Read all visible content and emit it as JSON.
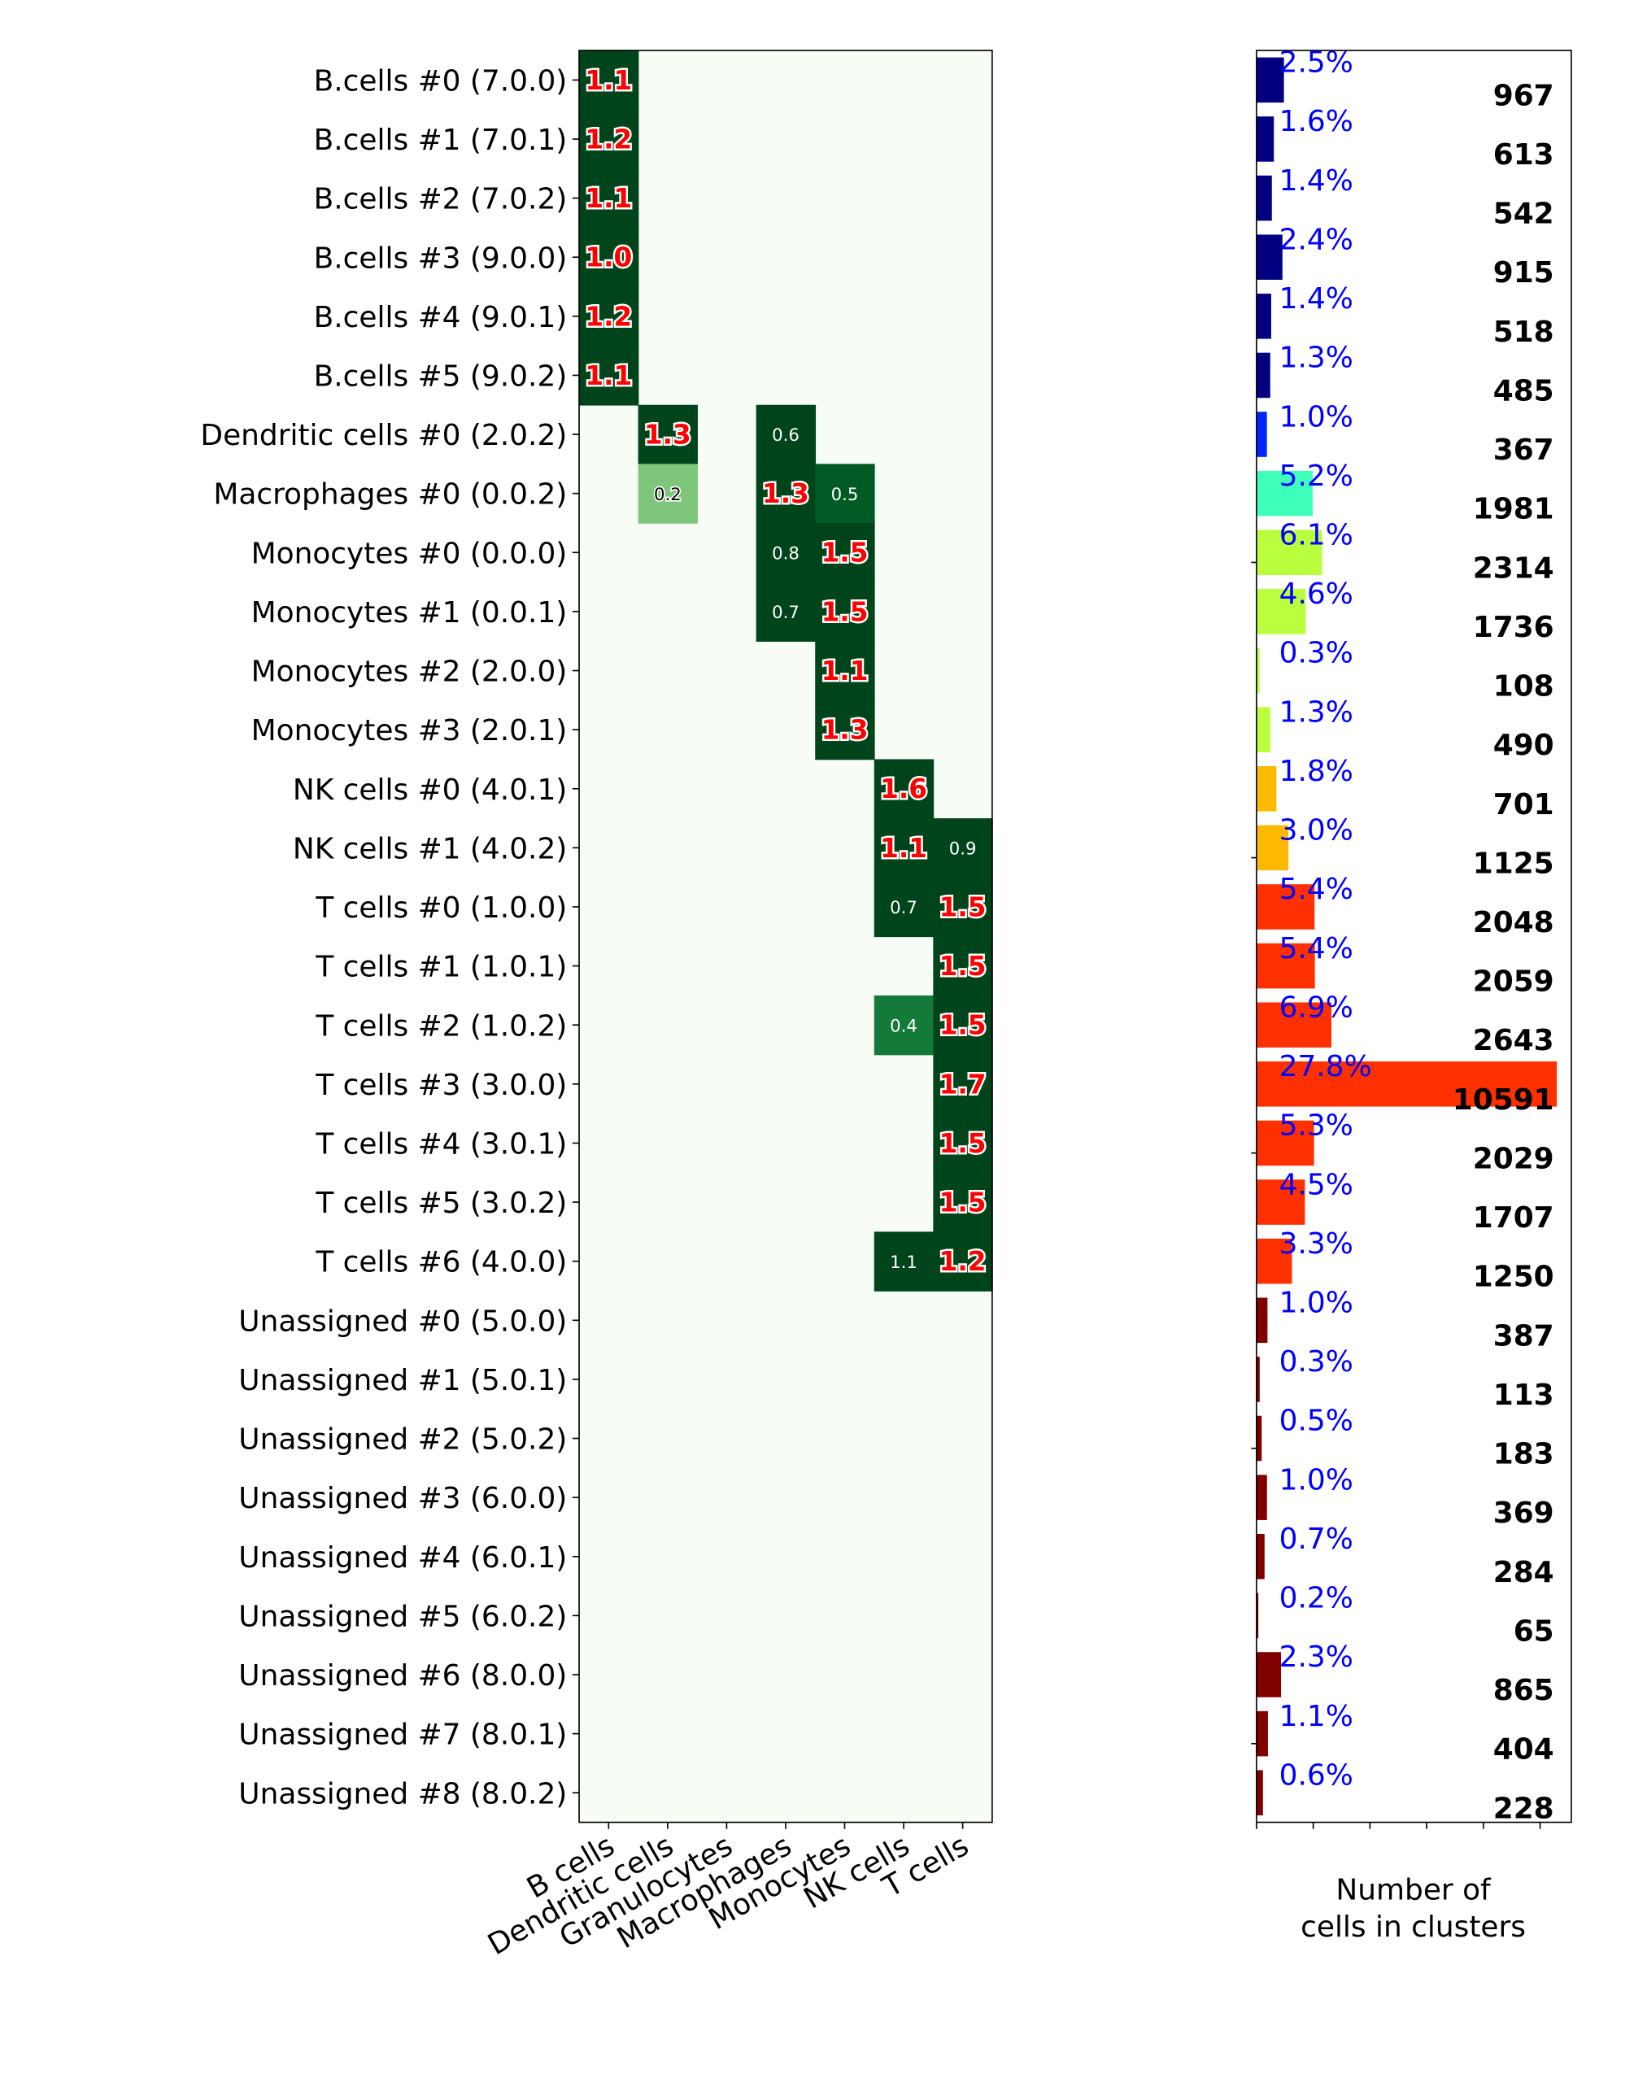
{
  "chart_data": [
    {
      "type": "heatmap",
      "columns": [
        "B cells",
        "Dendritic cells",
        "Granulocytes",
        "Macrophages",
        "Monocytes",
        "NK cells",
        "T cells"
      ],
      "rows": [
        "B.cells #0 (7.0.0)",
        "B.cells #1 (7.0.1)",
        "B.cells #2 (7.0.2)",
        "B.cells #3 (9.0.0)",
        "B.cells #4 (9.0.1)",
        "B.cells #5 (9.0.2)",
        "Dendritic cells #0 (2.0.2)",
        "Macrophages #0 (0.0.2)",
        "Monocytes #0 (0.0.0)",
        "Monocytes #1 (0.0.1)",
        "Monocytes #2 (2.0.0)",
        "Monocytes #3 (2.0.1)",
        "NK cells #0 (4.0.1)",
        "NK cells #1 (4.0.2)",
        "T cells #0 (1.0.0)",
        "T cells #1 (1.0.1)",
        "T cells #2 (1.0.2)",
        "T cells #3 (3.0.0)",
        "T cells #4 (3.0.1)",
        "T cells #5 (3.0.2)",
        "T cells #6 (4.0.0)",
        "Unassigned #0 (5.0.0)",
        "Unassigned #1 (5.0.1)",
        "Unassigned #2 (5.0.2)",
        "Unassigned #3 (6.0.0)",
        "Unassigned #4 (6.0.1)",
        "Unassigned #5 (6.0.2)",
        "Unassigned #6 (8.0.0)",
        "Unassigned #7 (8.0.1)",
        "Unassigned #8 (8.0.2)"
      ],
      "cells": [
        {
          "row": 0,
          "col": 0,
          "value": "1.1",
          "highlight": true
        },
        {
          "row": 1,
          "col": 0,
          "value": "1.2",
          "highlight": true
        },
        {
          "row": 2,
          "col": 0,
          "value": "1.1",
          "highlight": true
        },
        {
          "row": 3,
          "col": 0,
          "value": "1.0",
          "highlight": true
        },
        {
          "row": 4,
          "col": 0,
          "value": "1.2",
          "highlight": true
        },
        {
          "row": 5,
          "col": 0,
          "value": "1.1",
          "highlight": true
        },
        {
          "row": 6,
          "col": 1,
          "value": "1.3",
          "highlight": true
        },
        {
          "row": 6,
          "col": 3,
          "value": "0.6",
          "highlight": false
        },
        {
          "row": 7,
          "col": 1,
          "value": "0.2",
          "highlight": false
        },
        {
          "row": 7,
          "col": 3,
          "value": "1.3",
          "highlight": true
        },
        {
          "row": 7,
          "col": 4,
          "value": "0.5",
          "highlight": false
        },
        {
          "row": 8,
          "col": 3,
          "value": "0.8",
          "highlight": false
        },
        {
          "row": 8,
          "col": 4,
          "value": "1.5",
          "highlight": true
        },
        {
          "row": 9,
          "col": 3,
          "value": "0.7",
          "highlight": false
        },
        {
          "row": 9,
          "col": 4,
          "value": "1.5",
          "highlight": true
        },
        {
          "row": 10,
          "col": 4,
          "value": "1.1",
          "highlight": true
        },
        {
          "row": 11,
          "col": 4,
          "value": "1.3",
          "highlight": true
        },
        {
          "row": 12,
          "col": 5,
          "value": "1.6",
          "highlight": true
        },
        {
          "row": 13,
          "col": 5,
          "value": "1.1",
          "highlight": true
        },
        {
          "row": 13,
          "col": 6,
          "value": "0.9",
          "highlight": false
        },
        {
          "row": 14,
          "col": 5,
          "value": "0.7",
          "highlight": false
        },
        {
          "row": 14,
          "col": 6,
          "value": "1.5",
          "highlight": true
        },
        {
          "row": 15,
          "col": 6,
          "value": "1.5",
          "highlight": true
        },
        {
          "row": 16,
          "col": 5,
          "value": "0.4",
          "highlight": false
        },
        {
          "row": 16,
          "col": 6,
          "value": "1.5",
          "highlight": true
        },
        {
          "row": 17,
          "col": 6,
          "value": "1.7",
          "highlight": true
        },
        {
          "row": 18,
          "col": 6,
          "value": "1.5",
          "highlight": true
        },
        {
          "row": 19,
          "col": 6,
          "value": "1.5",
          "highlight": true
        },
        {
          "row": 20,
          "col": 5,
          "value": "1.1",
          "highlight": false
        },
        {
          "row": 20,
          "col": 6,
          "value": "1.2",
          "highlight": true
        }
      ],
      "colors": {
        "background": "#f7fcf5",
        "dark": "#00441b",
        "mid": "#005a24",
        "medium": "#137a3a",
        "light": "#7dc67c"
      }
    },
    {
      "type": "bar",
      "orientation": "horizontal",
      "xlabel": "Number of cells in clusters",
      "xlim": [
        0,
        11100
      ],
      "xticks": [
        0,
        2000,
        4000,
        6000,
        8000,
        10000
      ],
      "values": [
        967,
        613,
        542,
        915,
        518,
        485,
        367,
        1981,
        2314,
        1736,
        108,
        490,
        701,
        1125,
        2048,
        2059,
        2643,
        10591,
        2029,
        1707,
        1250,
        387,
        113,
        183,
        369,
        284,
        65,
        865,
        404,
        228
      ],
      "percent_labels": [
        "2.5%",
        "1.6%",
        "1.4%",
        "2.4%",
        "1.4%",
        "1.3%",
        "1.0%",
        "5.2%",
        "6.1%",
        "4.6%",
        "0.3%",
        "1.3%",
        "1.8%",
        "3.0%",
        "5.4%",
        "5.4%",
        "6.9%",
        "27.8%",
        "5.3%",
        "4.5%",
        "3.3%",
        "1.0%",
        "0.3%",
        "0.5%",
        "1.0%",
        "0.7%",
        "0.2%",
        "2.3%",
        "1.1%",
        "0.6%"
      ],
      "colors": [
        "#000080",
        "#000080",
        "#000080",
        "#000080",
        "#000080",
        "#000080",
        "#0026ff",
        "#3dffb9",
        "#b9ff3d",
        "#b9ff3d",
        "#b9ff3d",
        "#b9ff3d",
        "#ffb900",
        "#ffb900",
        "#ff3000",
        "#ff3000",
        "#ff3000",
        "#ff3000",
        "#ff3000",
        "#ff3000",
        "#ff3000",
        "#800000",
        "#800000",
        "#800000",
        "#800000",
        "#800000",
        "#800000",
        "#800000",
        "#800000",
        "#800000"
      ]
    }
  ]
}
